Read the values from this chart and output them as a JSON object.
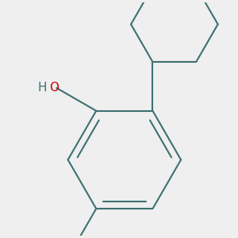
{
  "background_color": "#efefef",
  "bond_color": "#3d7070",
  "o_color": "#cc0000",
  "line_width": 1.5,
  "font_size": 11,
  "figsize": [
    3.0,
    3.0
  ],
  "dpi": 100
}
